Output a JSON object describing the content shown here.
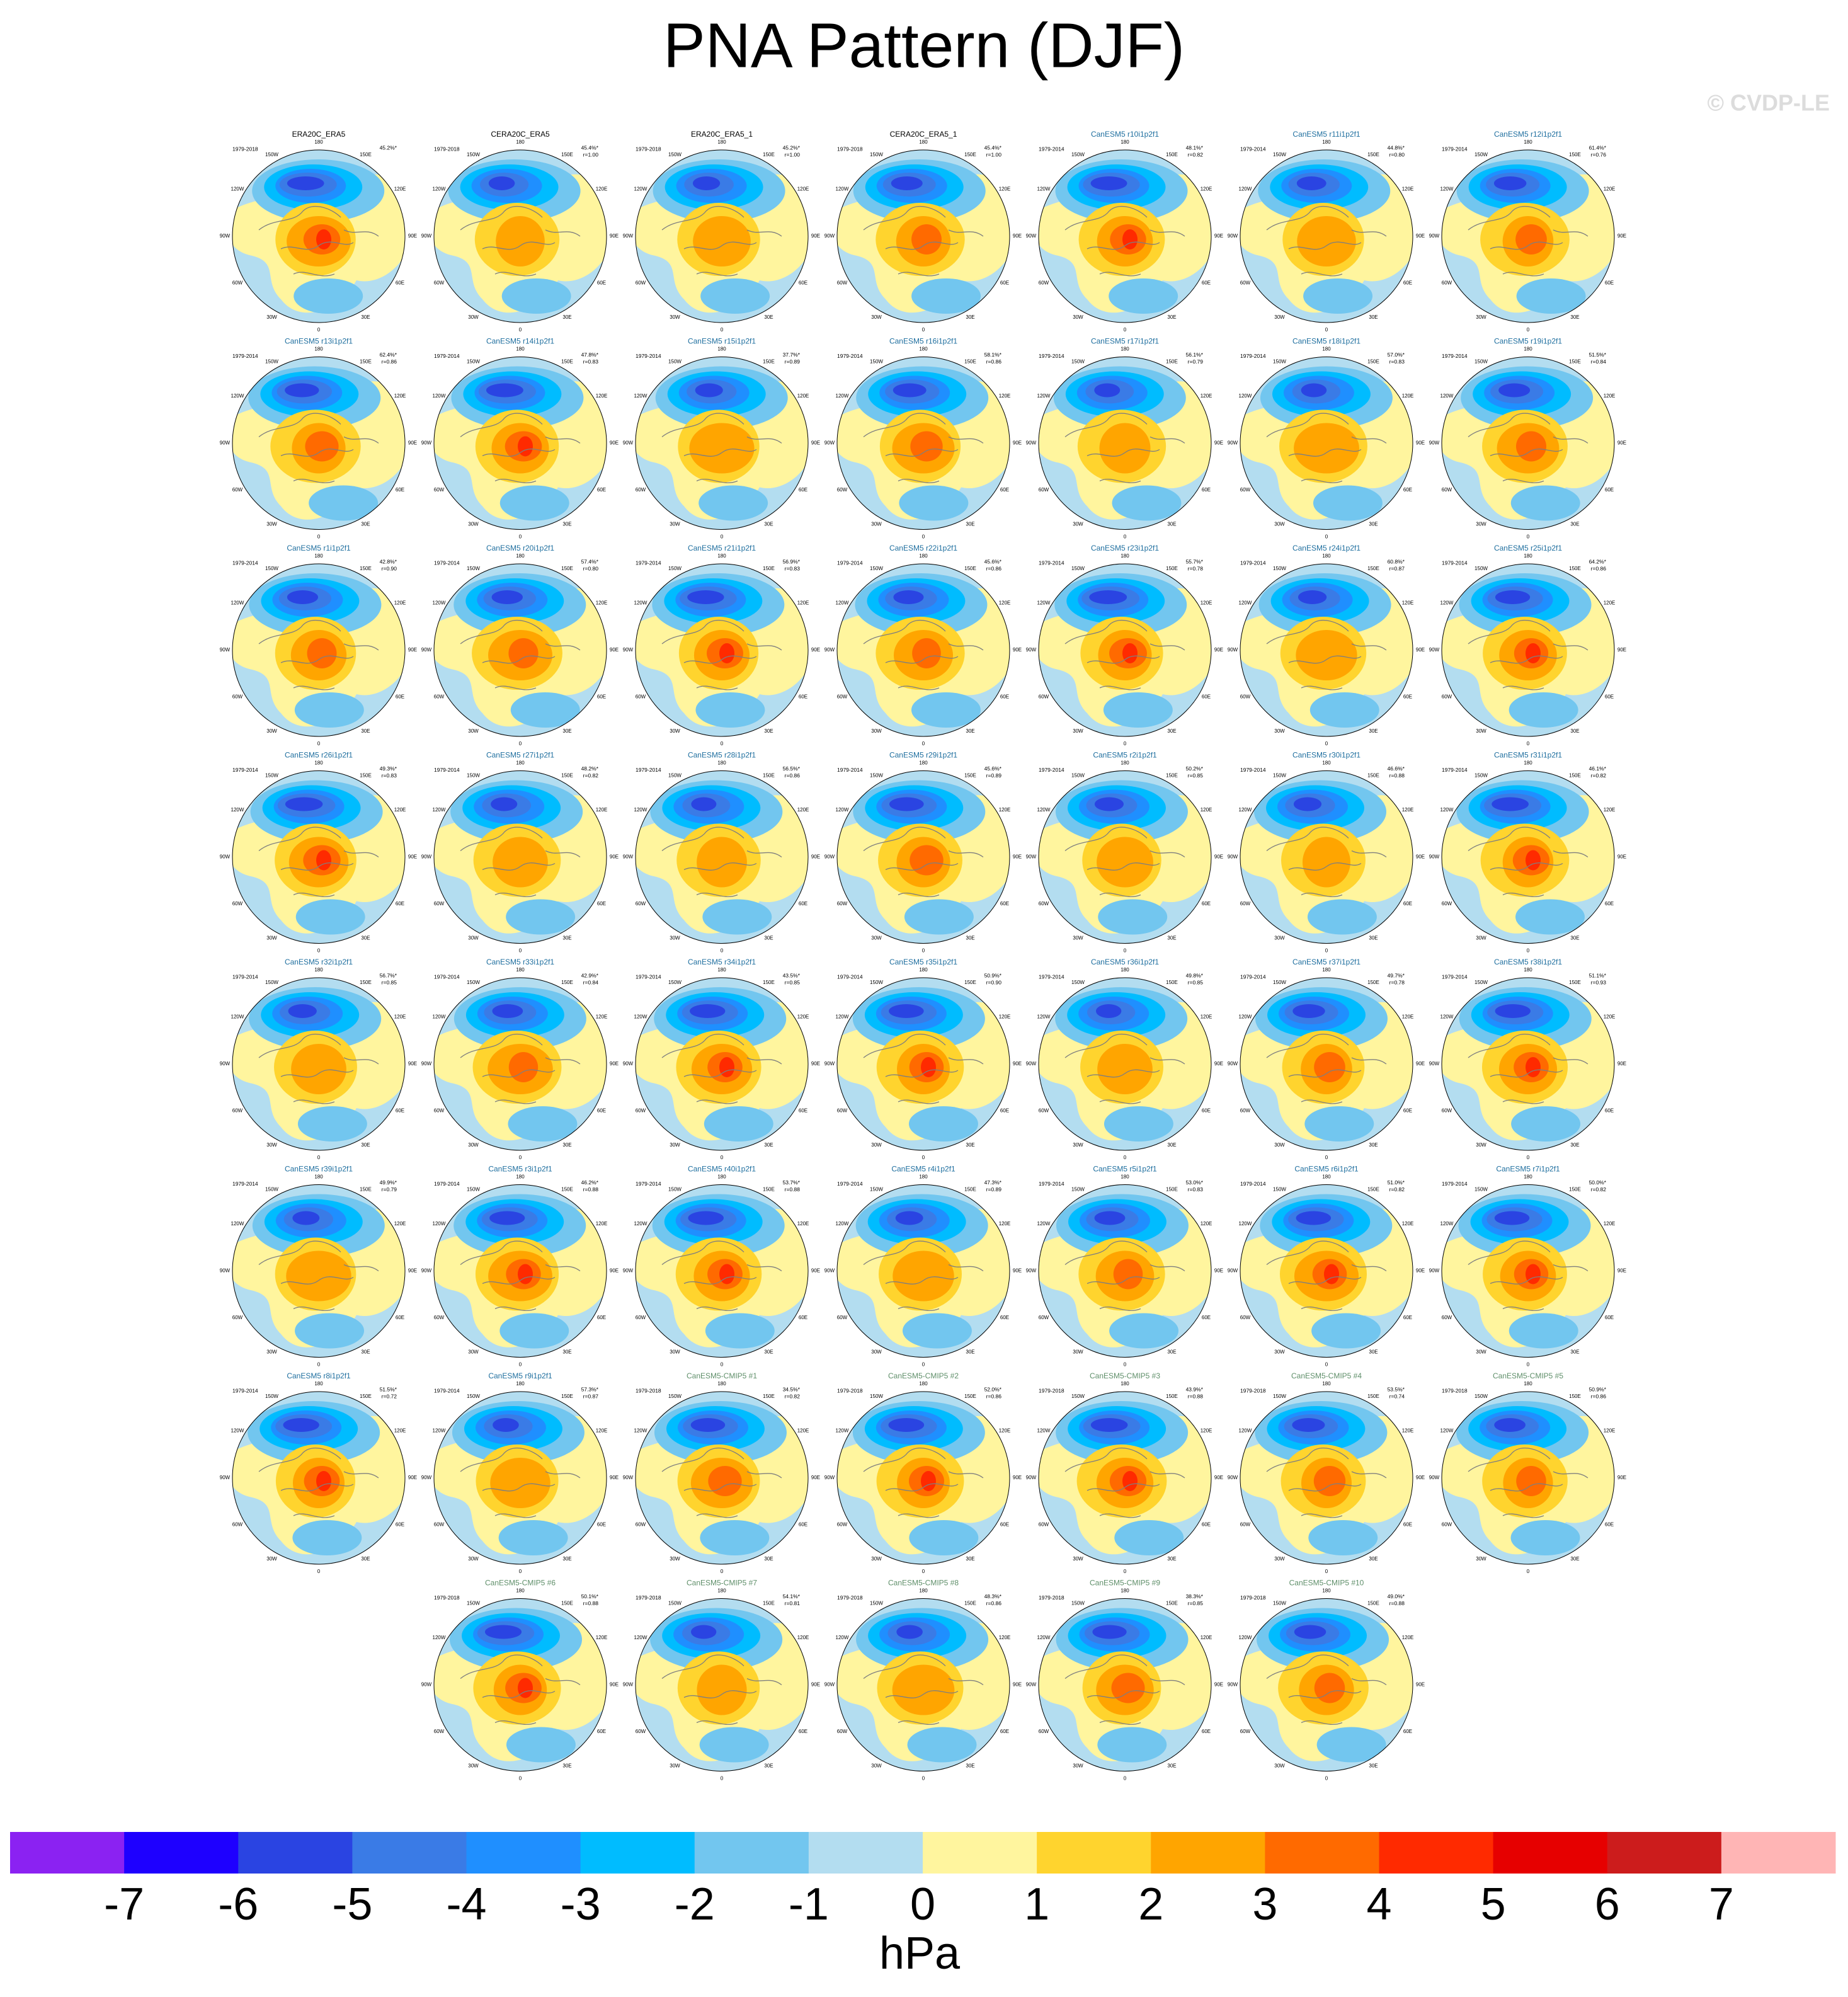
{
  "title": "PNA Pattern (DJF)",
  "watermark": "© CVDP-LE",
  "lon_labels": [
    "180",
    "150W",
    "150E",
    "120W",
    "120E",
    "90W",
    "90E",
    "60W",
    "60E",
    "30W",
    "30E",
    "0"
  ],
  "lon_values": [
    180,
    -150,
    150,
    -120,
    120,
    -90,
    90,
    -60,
    60,
    -30,
    30,
    0
  ],
  "rows": [
    [
      {
        "title": "ERA20C_ERA5",
        "title_color": "#000000",
        "period": "1979-2018",
        "pct": "45.2%*"
      },
      {
        "title": "CERA20C_ERA5",
        "title_color": "#000000",
        "period": "1979-2018",
        "pct": "45.4%*",
        "r": "r=1.00"
      },
      {
        "title": "ERA20C_ERA5_1",
        "title_color": "#000000",
        "period": "1979-2018",
        "pct": "45.2%*",
        "r": "r=1.00"
      },
      {
        "title": "CERA20C_ERA5_1",
        "title_color": "#000000",
        "period": "1979-2018",
        "pct": "45.4%*",
        "r": "r=1.00"
      },
      {
        "title": "CanESM5 r10i1p2f1",
        "title_color": "#1f6f9f",
        "period": "1979-2014",
        "pct": "48.1%*",
        "r": "r=0.82"
      },
      {
        "title": "CanESM5 r11i1p2f1",
        "title_color": "#1f6f9f",
        "period": "1979-2014",
        "pct": "44.8%*",
        "r": "r=0.80"
      },
      {
        "title": "CanESM5 r12i1p2f1",
        "title_color": "#1f6f9f",
        "period": "1979-2014",
        "pct": "61.4%*",
        "r": "r=0.76"
      }
    ],
    [
      {
        "title": "CanESM5 r13i1p2f1",
        "title_color": "#1f6f9f",
        "period": "1979-2014",
        "pct": "62.4%*",
        "r": "r=0.86"
      },
      {
        "title": "CanESM5 r14i1p2f1",
        "title_color": "#1f6f9f",
        "period": "1979-2014",
        "pct": "47.8%*",
        "r": "r=0.83"
      },
      {
        "title": "CanESM5 r15i1p2f1",
        "title_color": "#1f6f9f",
        "period": "1979-2014",
        "pct": "37.7%*",
        "r": "r=0.89"
      },
      {
        "title": "CanESM5 r16i1p2f1",
        "title_color": "#1f6f9f",
        "period": "1979-2014",
        "pct": "58.1%*",
        "r": "r=0.86"
      },
      {
        "title": "CanESM5 r17i1p2f1",
        "title_color": "#1f6f9f",
        "period": "1979-2014",
        "pct": "56.1%*",
        "r": "r=0.79"
      },
      {
        "title": "CanESM5 r18i1p2f1",
        "title_color": "#1f6f9f",
        "period": "1979-2014",
        "pct": "57.0%*",
        "r": "r=0.83"
      },
      {
        "title": "CanESM5 r19i1p2f1",
        "title_color": "#1f6f9f",
        "period": "1979-2014",
        "pct": "51.5%*",
        "r": "r=0.84"
      }
    ],
    [
      {
        "title": "CanESM5 r1i1p2f1",
        "title_color": "#1f6f9f",
        "period": "1979-2014",
        "pct": "42.8%*",
        "r": "r=0.90"
      },
      {
        "title": "CanESM5 r20i1p2f1",
        "title_color": "#1f6f9f",
        "period": "1979-2014",
        "pct": "57.4%*",
        "r": "r=0.80"
      },
      {
        "title": "CanESM5 r21i1p2f1",
        "title_color": "#1f6f9f",
        "period": "1979-2014",
        "pct": "56.9%*",
        "r": "r=0.83"
      },
      {
        "title": "CanESM5 r22i1p2f1",
        "title_color": "#1f6f9f",
        "period": "1979-2014",
        "pct": "45.6%*",
        "r": "r=0.86"
      },
      {
        "title": "CanESM5 r23i1p2f1",
        "title_color": "#1f6f9f",
        "period": "1979-2014",
        "pct": "55.7%*",
        "r": "r=0.78"
      },
      {
        "title": "CanESM5 r24i1p2f1",
        "title_color": "#1f6f9f",
        "period": "1979-2014",
        "pct": "60.8%*",
        "r": "r=0.87"
      },
      {
        "title": "CanESM5 r25i1p2f1",
        "title_color": "#1f6f9f",
        "period": "1979-2014",
        "pct": "64.2%*",
        "r": "r=0.86"
      }
    ],
    [
      {
        "title": "CanESM5 r26i1p2f1",
        "title_color": "#1f6f9f",
        "period": "1979-2014",
        "pct": "49.3%*",
        "r": "r=0.83"
      },
      {
        "title": "CanESM5 r27i1p2f1",
        "title_color": "#1f6f9f",
        "period": "1979-2014",
        "pct": "48.2%*",
        "r": "r=0.82"
      },
      {
        "title": "CanESM5 r28i1p2f1",
        "title_color": "#1f6f9f",
        "period": "1979-2014",
        "pct": "56.5%*",
        "r": "r=0.86"
      },
      {
        "title": "CanESM5 r29i1p2f1",
        "title_color": "#1f6f9f",
        "period": "1979-2014",
        "pct": "45.6%*",
        "r": "r=0.89"
      },
      {
        "title": "CanESM5 r2i1p2f1",
        "title_color": "#1f6f9f",
        "period": "1979-2014",
        "pct": "50.2%*",
        "r": "r=0.85"
      },
      {
        "title": "CanESM5 r30i1p2f1",
        "title_color": "#1f6f9f",
        "period": "1979-2014",
        "pct": "46.6%*",
        "r": "r=0.88"
      },
      {
        "title": "CanESM5 r31i1p2f1",
        "title_color": "#1f6f9f",
        "period": "1979-2014",
        "pct": "46.1%*",
        "r": "r=0.82"
      }
    ],
    [
      {
        "title": "CanESM5 r32i1p2f1",
        "title_color": "#1f6f9f",
        "period": "1979-2014",
        "pct": "56.7%*",
        "r": "r=0.85"
      },
      {
        "title": "CanESM5 r33i1p2f1",
        "title_color": "#1f6f9f",
        "period": "1979-2014",
        "pct": "42.9%*",
        "r": "r=0.84"
      },
      {
        "title": "CanESM5 r34i1p2f1",
        "title_color": "#1f6f9f",
        "period": "1979-2014",
        "pct": "43.5%*",
        "r": "r=0.85"
      },
      {
        "title": "CanESM5 r35i1p2f1",
        "title_color": "#1f6f9f",
        "period": "1979-2014",
        "pct": "50.9%*",
        "r": "r=0.90"
      },
      {
        "title": "CanESM5 r36i1p2f1",
        "title_color": "#1f6f9f",
        "period": "1979-2014",
        "pct": "49.8%*",
        "r": "r=0.85"
      },
      {
        "title": "CanESM5 r37i1p2f1",
        "title_color": "#1f6f9f",
        "period": "1979-2014",
        "pct": "49.7%*",
        "r": "r=0.78"
      },
      {
        "title": "CanESM5 r38i1p2f1",
        "title_color": "#1f6f9f",
        "period": "1979-2014",
        "pct": "51.1%*",
        "r": "r=0.93"
      }
    ],
    [
      {
        "title": "CanESM5 r39i1p2f1",
        "title_color": "#1f6f9f",
        "period": "1979-2014",
        "pct": "49.9%*",
        "r": "r=0.79"
      },
      {
        "title": "CanESM5 r3i1p2f1",
        "title_color": "#1f6f9f",
        "period": "1979-2014",
        "pct": "46.2%*",
        "r": "r=0.88"
      },
      {
        "title": "CanESM5 r40i1p2f1",
        "title_color": "#1f6f9f",
        "period": "1979-2014",
        "pct": "53.7%*",
        "r": "r=0.88"
      },
      {
        "title": "CanESM5 r4i1p2f1",
        "title_color": "#1f6f9f",
        "period": "1979-2014",
        "pct": "47.3%*",
        "r": "r=0.89"
      },
      {
        "title": "CanESM5 r5i1p2f1",
        "title_color": "#1f6f9f",
        "period": "1979-2014",
        "pct": "53.0%*",
        "r": "r=0.83"
      },
      {
        "title": "CanESM5 r6i1p2f1",
        "title_color": "#1f6f9f",
        "period": "1979-2014",
        "pct": "51.0%*",
        "r": "r=0.82"
      },
      {
        "title": "CanESM5 r7i1p2f1",
        "title_color": "#1f6f9f",
        "period": "1979-2014",
        "pct": "50.0%*",
        "r": "r=0.82"
      }
    ],
    [
      {
        "title": "CanESM5 r8i1p2f1",
        "title_color": "#1f6f9f",
        "period": "1979-2014",
        "pct": "51.5%*",
        "r": "r=0.72"
      },
      {
        "title": "CanESM5 r9i1p2f1",
        "title_color": "#1f6f9f",
        "period": "1979-2014",
        "pct": "57.3%*",
        "r": "r=0.87"
      },
      {
        "title": "CanESM5-CMIP5 #1",
        "title_color": "#5f8f6a",
        "period": "1979-2018",
        "pct": "34.5%*",
        "r": "r=0.82"
      },
      {
        "title": "CanESM5-CMIP5 #2",
        "title_color": "#5f8f6a",
        "period": "1979-2018",
        "pct": "52.0%*",
        "r": "r=0.86"
      },
      {
        "title": "CanESM5-CMIP5 #3",
        "title_color": "#5f8f6a",
        "period": "1979-2018",
        "pct": "43.9%*",
        "r": "r=0.88"
      },
      {
        "title": "CanESM5-CMIP5 #4",
        "title_color": "#5f8f6a",
        "period": "1979-2018",
        "pct": "53.5%*",
        "r": "r=0.74"
      },
      {
        "title": "CanESM5-CMIP5 #5",
        "title_color": "#5f8f6a",
        "period": "1979-2018",
        "pct": "50.9%*",
        "r": "r=0.86"
      }
    ],
    [
      {
        "title": "CanESM5-CMIP5 #6",
        "title_color": "#5f8f6a",
        "period": "1979-2018",
        "pct": "50.1%*",
        "r": "r=0.88"
      },
      {
        "title": "CanESM5-CMIP5 #7",
        "title_color": "#5f8f6a",
        "period": "1979-2018",
        "pct": "54.1%*",
        "r": "r=0.81"
      },
      {
        "title": "CanESM5-CMIP5 #8",
        "title_color": "#5f8f6a",
        "period": "1979-2018",
        "pct": "48.3%*",
        "r": "r=0.86"
      },
      {
        "title": "CanESM5-CMIP5 #9",
        "title_color": "#5f8f6a",
        "period": "1979-2018",
        "pct": "38.3%*",
        "r": "r=0.85"
      },
      {
        "title": "CanESM5-CMIP5 #10",
        "title_color": "#5f8f6a",
        "period": "1979-2018",
        "pct": "49.0%*",
        "r": "r=0.88"
      }
    ]
  ],
  "colorbar": {
    "ticks": [
      -7,
      -6,
      -5,
      -4,
      -3,
      -2,
      -1,
      0,
      1,
      2,
      3,
      4,
      5,
      6,
      7
    ],
    "colors": [
      "#8b22f2",
      "#1e00ff",
      "#2a44e2",
      "#3a7be6",
      "#1f8fff",
      "#00bcff",
      "#72c6ef",
      "#b3ddf0",
      "#fff59e",
      "#ffd42e",
      "#ffa500",
      "#ff6a00",
      "#ff2a00",
      "#e60000",
      "#cc1c1c",
      "#ffb5b5"
    ],
    "label": "hPa"
  }
}
